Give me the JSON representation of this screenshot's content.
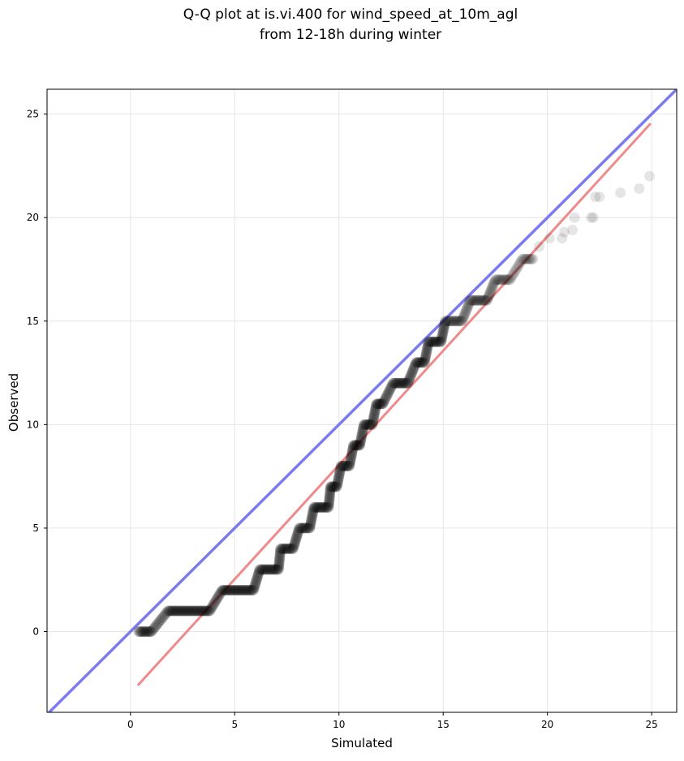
{
  "chart_data": {
    "type": "scatter",
    "title": "Q-Q plot at is.vi.400 for wind_speed_at_10m_agl",
    "subtitle": "from 12-18h during winter",
    "xlabel": "Simulated",
    "ylabel": "Observed",
    "xlim": [
      -4,
      26.2
    ],
    "ylim": [
      -3.9,
      26.2
    ],
    "xticks": [
      0,
      5,
      10,
      15,
      20,
      25
    ],
    "yticks": [
      0,
      5,
      10,
      15,
      20,
      25
    ],
    "xtick_labels": [
      "0",
      "5",
      "10",
      "15",
      "20",
      "25"
    ],
    "ytick_labels": [
      "0",
      "5",
      "10",
      "15",
      "20",
      "25"
    ],
    "grid": true,
    "point_color": "#000000",
    "identity_line_color": "#7b7bf0",
    "fit_line_color": "#f08a8a",
    "identity_line": {
      "x": [
        -4,
        26.2
      ],
      "y": [
        -4,
        26.2
      ]
    },
    "fit_line": {
      "x": [
        0.35,
        24.95
      ],
      "y": [
        -2.6,
        24.55
      ]
    },
    "steps": [
      {
        "y": 0,
        "x_start": 0.4,
        "x_end": 1.0
      },
      {
        "y": 1,
        "x_start": 1.8,
        "x_end": 3.8
      },
      {
        "y": 2,
        "x_start": 4.4,
        "x_end": 5.9
      },
      {
        "y": 3,
        "x_start": 6.2,
        "x_end": 7.1
      },
      {
        "y": 4,
        "x_start": 7.2,
        "x_end": 7.8
      },
      {
        "y": 5,
        "x_start": 8.1,
        "x_end": 8.6
      },
      {
        "y": 6,
        "x_start": 8.8,
        "x_end": 9.5
      },
      {
        "y": 7,
        "x_start": 9.6,
        "x_end": 9.9
      },
      {
        "y": 8,
        "x_start": 10.1,
        "x_end": 10.5
      },
      {
        "y": 9,
        "x_start": 10.7,
        "x_end": 11.0
      },
      {
        "y": 10,
        "x_start": 11.2,
        "x_end": 11.6
      },
      {
        "y": 11,
        "x_start": 11.8,
        "x_end": 12.1
      },
      {
        "y": 12,
        "x_start": 12.6,
        "x_end": 13.3
      },
      {
        "y": 13,
        "x_start": 13.7,
        "x_end": 14.1
      },
      {
        "y": 14,
        "x_start": 14.3,
        "x_end": 14.9
      },
      {
        "y": 15,
        "x_start": 15.1,
        "x_end": 15.9
      },
      {
        "y": 16,
        "x_start": 16.3,
        "x_end": 17.1
      },
      {
        "y": 17,
        "x_start": 17.5,
        "x_end": 18.2
      },
      {
        "y": 18,
        "x_start": 18.8,
        "x_end": 19.3
      }
    ],
    "tail_points": [
      {
        "x": 19.6,
        "y": 18.6
      },
      {
        "x": 20.1,
        "y": 19.0
      },
      {
        "x": 20.7,
        "y": 19.0
      },
      {
        "x": 20.8,
        "y": 19.3
      },
      {
        "x": 21.2,
        "y": 19.4
      },
      {
        "x": 21.3,
        "y": 20.0
      },
      {
        "x": 22.1,
        "y": 20.0
      },
      {
        "x": 22.2,
        "y": 20.0
      },
      {
        "x": 22.3,
        "y": 21.0
      },
      {
        "x": 22.5,
        "y": 21.0
      },
      {
        "x": 23.5,
        "y": 21.2
      },
      {
        "x": 24.4,
        "y": 21.4
      },
      {
        "x": 24.9,
        "y": 22.0
      }
    ]
  }
}
